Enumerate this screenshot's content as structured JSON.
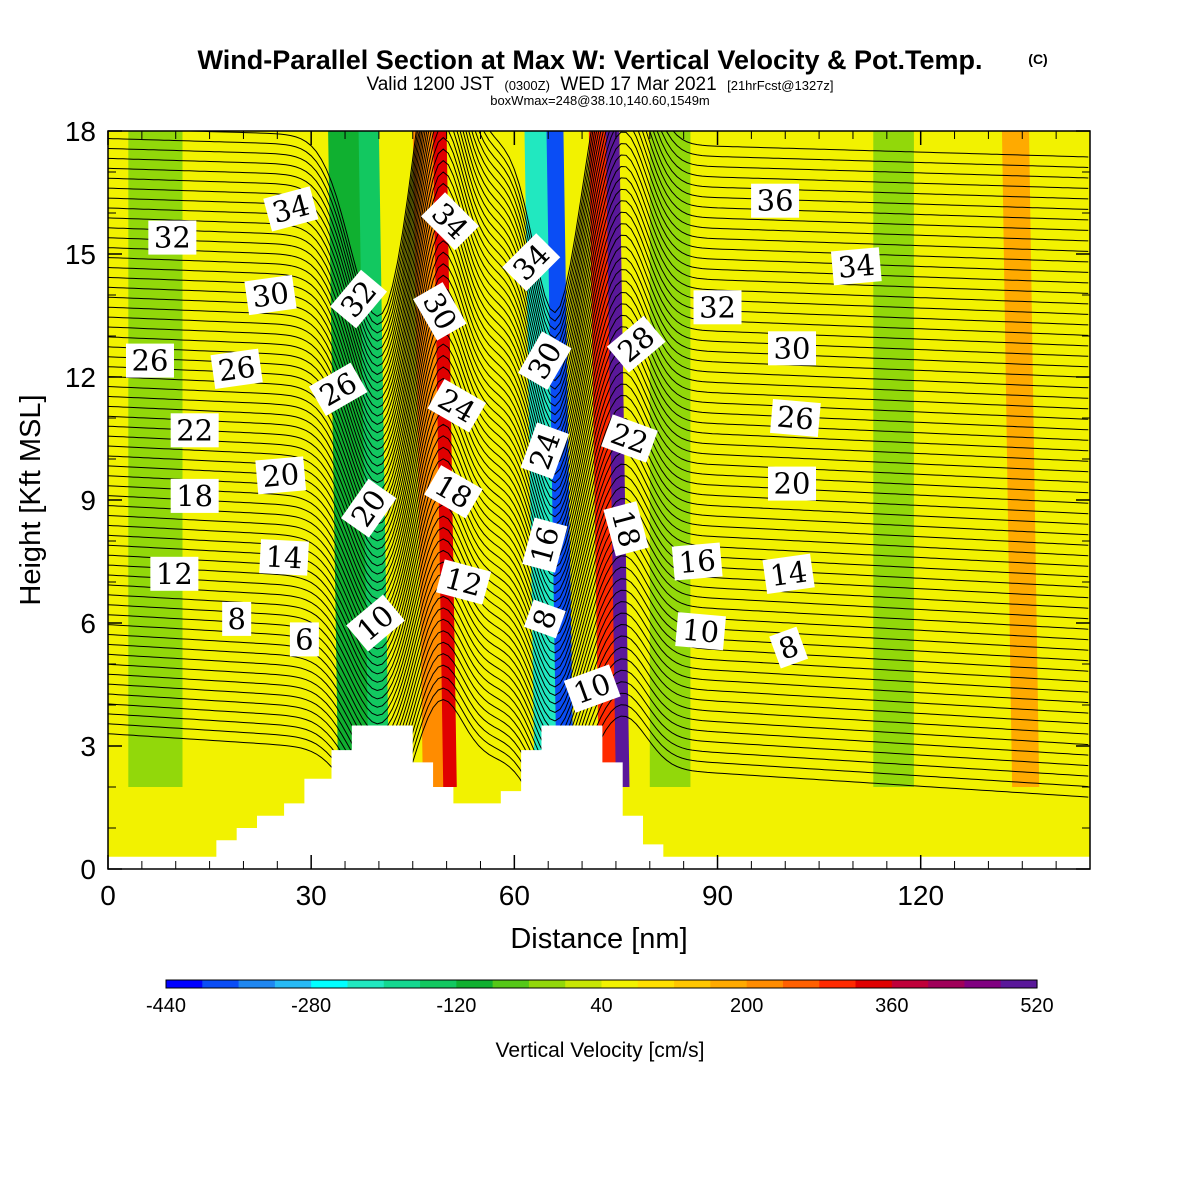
{
  "title": {
    "main": "Wind-Parallel Section at Max W: Vertical Velocity & Pot.Temp.",
    "copyright": "(C)",
    "valid_prefix": "Valid 1200 JST",
    "valid_utc": "(0300Z)",
    "valid_date": "WED 17 Mar 2021",
    "forecast": "[21hrFcst@1327z]",
    "box_info": "boxWmax=248@38.10,140.60,1549m"
  },
  "colors": {
    "terrain": "#ffffff",
    "contour": "#000000",
    "velocity_scale": [
      "#0000ff",
      "#0a4df5",
      "#1f87f0",
      "#27baf5",
      "#00ffff",
      "#21e8c0",
      "#14d890",
      "#12c860",
      "#10b030",
      "#55c818",
      "#92d80a",
      "#c8e604",
      "#f2f200",
      "#ffe000",
      "#ffc600",
      "#ffaa00",
      "#ff8c00",
      "#ff6000",
      "#ff2a00",
      "#e00000",
      "#c0003a",
      "#a0005a",
      "#800080",
      "#5a189a"
    ]
  },
  "chart_data": {
    "type": "heatmap",
    "xlabel": "Distance [nm]",
    "ylabel": "Height [Kft MSL]",
    "xlim": [
      0,
      145
    ],
    "ylim": [
      0,
      18
    ],
    "xticks": [
      "0",
      "30",
      "60",
      "90",
      "120"
    ],
    "yticks": [
      "0",
      "3",
      "6",
      "9",
      "12",
      "15",
      "18"
    ],
    "colorbar": {
      "title": "Vertical Velocity [cm/s]",
      "min": -440,
      "max": 520,
      "step": 40,
      "labels": [
        "-440",
        "-280",
        "-120",
        "40",
        "200",
        "360",
        "520"
      ]
    },
    "background_velocity": 40,
    "velocity_bands": [
      {
        "x": 7,
        "w": 8,
        "v": -40
      },
      {
        "x": 36,
        "w": 7,
        "v": -120
      },
      {
        "x": 38.5,
        "w": 3,
        "v": -160
      },
      {
        "x": 47,
        "w": 4,
        "v": 200
      },
      {
        "x": 49,
        "w": 2,
        "v": 320
      },
      {
        "x": 64,
        "w": 5,
        "v": -240
      },
      {
        "x": 66,
        "w": 2.5,
        "v": -400
      },
      {
        "x": 73,
        "w": 4,
        "v": 280
      },
      {
        "x": 74.5,
        "w": 2,
        "v": 480
      },
      {
        "x": 83,
        "w": 6,
        "v": -40
      },
      {
        "x": 116,
        "w": 6,
        "v": -40
      },
      {
        "x": 134,
        "w": 4,
        "v": 160
      }
    ],
    "terrain_heights_kft": [
      {
        "x": 16,
        "h": 0.7
      },
      {
        "x": 19,
        "h": 1.0
      },
      {
        "x": 22,
        "h": 1.3
      },
      {
        "x": 26,
        "h": 1.6
      },
      {
        "x": 29,
        "h": 2.2
      },
      {
        "x": 33,
        "h": 2.9
      },
      {
        "x": 36,
        "h": 3.5
      },
      {
        "x": 42,
        "h": 3.5
      },
      {
        "x": 45,
        "h": 2.6
      },
      {
        "x": 48,
        "h": 2.0
      },
      {
        "x": 51,
        "h": 1.6
      },
      {
        "x": 58,
        "h": 1.9
      },
      {
        "x": 61,
        "h": 2.9
      },
      {
        "x": 64,
        "h": 3.5
      },
      {
        "x": 70,
        "h": 3.5
      },
      {
        "x": 73,
        "h": 2.6
      },
      {
        "x": 76,
        "h": 1.3
      },
      {
        "x": 79,
        "h": 0.6
      },
      {
        "x": 82,
        "h": 0.3
      },
      {
        "x": 145,
        "h": 0.3
      }
    ],
    "theta_contour_count": 62,
    "contour_labels": [
      {
        "text": "34",
        "x": 27,
        "y": 16.1,
        "rot": 15
      },
      {
        "text": "32",
        "x": 9.5,
        "y": 15.4,
        "rot": 0
      },
      {
        "text": "30",
        "x": 24,
        "y": 14.0,
        "rot": 8
      },
      {
        "text": "26",
        "x": 6.2,
        "y": 12.4,
        "rot": 0
      },
      {
        "text": "26",
        "x": 19,
        "y": 12.2,
        "rot": 8
      },
      {
        "text": "22",
        "x": 12.8,
        "y": 10.7,
        "rot": 0
      },
      {
        "text": "20",
        "x": 25.5,
        "y": 9.6,
        "rot": 5
      },
      {
        "text": "18",
        "x": 12.8,
        "y": 9.1,
        "rot": 0
      },
      {
        "text": "12",
        "x": 9.8,
        "y": 7.2,
        "rot": 0
      },
      {
        "text": "14",
        "x": 26,
        "y": 7.6,
        "rot": -3
      },
      {
        "text": "8",
        "x": 19,
        "y": 6.1,
        "rot": 0
      },
      {
        "text": "6",
        "x": 29,
        "y": 5.6,
        "rot": 0
      },
      {
        "text": "32",
        "x": 37,
        "y": 13.9,
        "rot": 50
      },
      {
        "text": "26",
        "x": 34,
        "y": 11.7,
        "rot": 30
      },
      {
        "text": "20",
        "x": 38.5,
        "y": 8.8,
        "rot": 55
      },
      {
        "text": "10",
        "x": 39.5,
        "y": 6.0,
        "rot": 40
      },
      {
        "text": "34",
        "x": 50.5,
        "y": 15.8,
        "rot": -45
      },
      {
        "text": "30",
        "x": 49,
        "y": 13.6,
        "rot": -60
      },
      {
        "text": "24",
        "x": 51.5,
        "y": 11.3,
        "rot": -30
      },
      {
        "text": "18",
        "x": 51,
        "y": 9.2,
        "rot": -30
      },
      {
        "text": "12",
        "x": 52.5,
        "y": 7.0,
        "rot": -15
      },
      {
        "text": "34",
        "x": 62.5,
        "y": 14.8,
        "rot": 45
      },
      {
        "text": "30",
        "x": 64.5,
        "y": 12.4,
        "rot": 60
      },
      {
        "text": "24",
        "x": 64.5,
        "y": 10.2,
        "rot": 70
      },
      {
        "text": "16",
        "x": 64.5,
        "y": 7.9,
        "rot": 75
      },
      {
        "text": "8",
        "x": 64.5,
        "y": 6.1,
        "rot": 70
      },
      {
        "text": "10",
        "x": 71.5,
        "y": 4.4,
        "rot": 20
      },
      {
        "text": "28",
        "x": 78,
        "y": 12.8,
        "rot": 40
      },
      {
        "text": "22",
        "x": 77,
        "y": 10.5,
        "rot": -20
      },
      {
        "text": "18",
        "x": 76.5,
        "y": 8.3,
        "rot": -75
      },
      {
        "text": "36",
        "x": 98.5,
        "y": 16.3,
        "rot": 0
      },
      {
        "text": "34",
        "x": 110.5,
        "y": 14.7,
        "rot": 5
      },
      {
        "text": "32",
        "x": 90,
        "y": 13.7,
        "rot": 0
      },
      {
        "text": "30",
        "x": 101,
        "y": 12.7,
        "rot": 0
      },
      {
        "text": "26",
        "x": 101.5,
        "y": 11.0,
        "rot": -5
      },
      {
        "text": "20",
        "x": 101,
        "y": 9.4,
        "rot": 0
      },
      {
        "text": "16",
        "x": 87,
        "y": 7.5,
        "rot": 5
      },
      {
        "text": "14",
        "x": 100.5,
        "y": 7.2,
        "rot": 8
      },
      {
        "text": "10",
        "x": 87.5,
        "y": 5.8,
        "rot": -5
      },
      {
        "text": "8",
        "x": 100.5,
        "y": 5.4,
        "rot": 20
      }
    ]
  }
}
